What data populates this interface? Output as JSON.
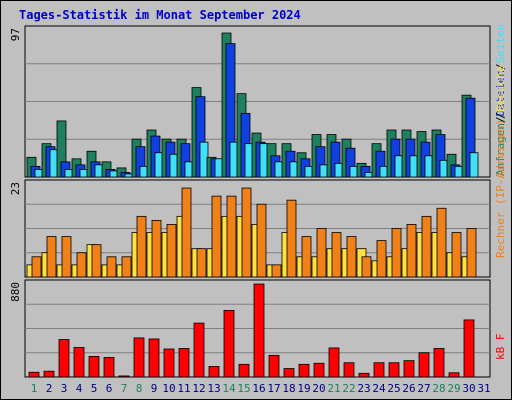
{
  "chart_data": {
    "type": "bar",
    "title": "Tages-Statistik im Monat September 2024",
    "days": [
      "1",
      "2",
      "3",
      "4",
      "5",
      "6",
      "7",
      "8",
      "9",
      "10",
      "11",
      "12",
      "13",
      "14",
      "15",
      "16",
      "17",
      "18",
      "19",
      "20",
      "21",
      "22",
      "23",
      "24",
      "25",
      "26",
      "27",
      "28",
      "29",
      "30",
      "31"
    ],
    "weekend_days": [
      "1",
      "7",
      "8",
      "14",
      "15",
      "21",
      "22",
      "28",
      "29"
    ],
    "panels": [
      {
        "key": "top",
        "max_label": "97",
        "ymax": 97,
        "series": [
          {
            "name": "Anfragen",
            "color": "#1f8060",
            "values": [
              13,
              22,
              37,
              12,
              17,
              10,
              6,
              25,
              31,
              25,
              25,
              59,
              13,
              95,
              55,
              29,
              22,
              22,
              16,
              28,
              28,
              25,
              9,
              22,
              31,
              31,
              30,
              31,
              15,
              54,
              0
            ]
          },
          {
            "name": "Dateien",
            "color": "#1040e0",
            "values": [
              7,
              20,
              10,
              8,
              10,
              5,
              3,
              20,
              27,
              23,
              22,
              53,
              12,
              88,
              42,
              23,
              14,
              17,
              12,
              20,
              23,
              19,
              7,
              17,
              25,
              25,
              23,
              28,
              8,
              52,
              0
            ]
          },
          {
            "name": "Seiten",
            "color": "#40e0f8",
            "values": [
              5,
              18,
              5,
              5,
              8,
              4,
              2,
              7,
              16,
              15,
              10,
              23,
              12,
              23,
              22,
              22,
              10,
              10,
              7,
              8,
              9,
              7,
              3,
              7,
              14,
              14,
              14,
              11,
              7,
              16,
              0
            ]
          }
        ]
      },
      {
        "key": "mid",
        "max_label": "23",
        "ymax": 23,
        "series": [
          {
            "name": "Besuche",
            "color": "#ffe040",
            "values": [
              3,
              6,
              3,
              3,
              8,
              3,
              3,
              11,
              11,
              11,
              15,
              7,
              7,
              15,
              15,
              13,
              3,
              11,
              5,
              5,
              7,
              7,
              7,
              4,
              5,
              7,
              11,
              11,
              6,
              5,
              0
            ]
          },
          {
            "name": "Rechner (IP-Adressen)",
            "color": "#f08018",
            "values": [
              5,
              10,
              10,
              6,
              8,
              5,
              5,
              15,
              14,
              13,
              22,
              7,
              20,
              20,
              22,
              18,
              3,
              19,
              10,
              12,
              11,
              10,
              5,
              9,
              12,
              13,
              15,
              17,
              11,
              12,
              0
            ]
          }
        ]
      },
      {
        "key": "bot",
        "max_label": "880",
        "ymax": 880,
        "series": [
          {
            "name": "kB F",
            "color": "#ff0000",
            "values": [
              45,
              55,
              355,
              280,
              195,
              185,
              10,
              370,
              360,
              265,
              270,
              510,
              100,
              630,
              120,
              880,
              205,
              80,
              120,
              130,
              275,
              135,
              35,
              135,
              135,
              155,
              230,
              270,
              40,
              540,
              0
            ]
          }
        ]
      }
    ],
    "side_labels": {
      "top": [
        {
          "text": "Anfragen",
          "color": "#1f8060"
        },
        {
          "text": "/",
          "color": "#000000"
        },
        {
          "text": "Dateien",
          "color": "#1040e0"
        },
        {
          "text": "/",
          "color": "#000000"
        },
        {
          "text": "Seiten",
          "color": "#40e0f8"
        }
      ],
      "mid": [
        {
          "text": "Rechner (IP-Adressen)",
          "color": "#f08018"
        },
        {
          "text": "/",
          "color": "#000000"
        },
        {
          "text": "Besuche",
          "color": "#ffe040"
        }
      ],
      "bot": [
        {
          "text": "kB F",
          "color": "#ff0000"
        }
      ]
    }
  }
}
